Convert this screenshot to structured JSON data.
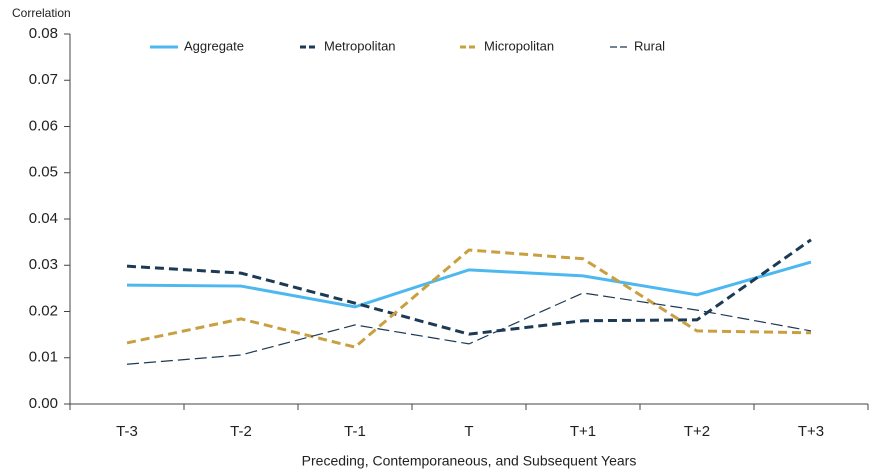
{
  "chart_data": {
    "type": "line",
    "y_label": "Correlation",
    "x_label": "Preceding, Contemporaneous, and Subsequent Years",
    "categories": [
      "T-3",
      "T-2",
      "T-1",
      "T",
      "T+1",
      "T+2",
      "T+3"
    ],
    "series": [
      {
        "name": "Aggregate",
        "color": "#4db8f0",
        "style": "solid",
        "values": [
          0.0257,
          0.0255,
          0.021,
          0.029,
          0.0277,
          0.0236,
          0.0307
        ]
      },
      {
        "name": "Metropolitan",
        "color": "#1d3a55",
        "style": "dashed",
        "values": [
          0.0298,
          0.0283,
          0.0218,
          0.0151,
          0.018,
          0.0182,
          0.0355
        ]
      },
      {
        "name": "Micropolitan",
        "color": "#c8a040",
        "style": "dashed",
        "values": [
          0.0132,
          0.0184,
          0.0123,
          0.0333,
          0.0314,
          0.0158,
          0.0154
        ]
      },
      {
        "name": "Rural",
        "color": "#1d3a55",
        "style": "thin-dashed",
        "values": [
          0.0086,
          0.0106,
          0.0171,
          0.013,
          0.024,
          0.0203,
          0.0158
        ]
      }
    ],
    "ylim": [
      0,
      0.08
    ],
    "yticks": [
      {
        "value": 0,
        "label": "0.00"
      },
      0.01,
      0.02,
      0.03,
      0.04,
      0.05,
      0.06,
      0.07,
      0.08
    ],
    "legend": "top"
  }
}
